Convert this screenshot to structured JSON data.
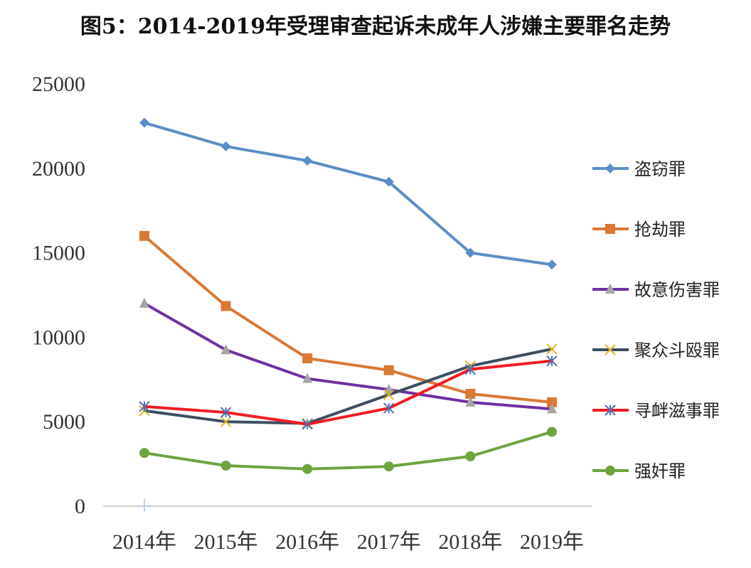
{
  "chart_data": {
    "type": "line",
    "title": "图5：2014-2019年受理审查起诉未成年人涉嫌主要罪名走势",
    "xlabel": "",
    "ylabel": "",
    "categories": [
      "2014年",
      "2015年",
      "2016年",
      "2017年",
      "2018年",
      "2019年"
    ],
    "ylim": [
      0,
      25000
    ],
    "yticks": [
      0,
      5000,
      10000,
      15000,
      20000,
      25000
    ],
    "grid": false,
    "legend_position": "right",
    "series": [
      {
        "name": "盗窃罪",
        "values": [
          22700,
          21300,
          20450,
          19200,
          15000,
          14300
        ],
        "color": "#5b8ec6",
        "marker": "diamond",
        "marker_color": "#5b8ec6"
      },
      {
        "name": "抢劫罪",
        "values": [
          16000,
          11850,
          8750,
          8050,
          6650,
          6150
        ],
        "color": "#d97935",
        "marker": "square",
        "marker_color": "#d97935"
      },
      {
        "name": "故意伤害罪",
        "values": [
          12000,
          9250,
          7550,
          6900,
          6150,
          5750
        ],
        "color": "#7030a0",
        "marker": "triangle",
        "marker_color": "#a5a5a5"
      },
      {
        "name": "聚众斗殴罪",
        "values": [
          5650,
          5000,
          4900,
          6600,
          8300,
          9300
        ],
        "color": "#3d4e5f",
        "marker": "x",
        "marker_color": "#e0b72a"
      },
      {
        "name": "寻衅滋事罪",
        "values": [
          5900,
          5550,
          4850,
          5800,
          8100,
          8600
        ],
        "color": "#f01c24",
        "marker": "star",
        "marker_color": "#4f6fb0"
      },
      {
        "name": "强奸罪",
        "values": [
          3150,
          2400,
          2200,
          2350,
          2950,
          4400
        ],
        "color": "#6fa43f",
        "marker": "circle",
        "marker_color": "#6fa43f"
      }
    ]
  }
}
